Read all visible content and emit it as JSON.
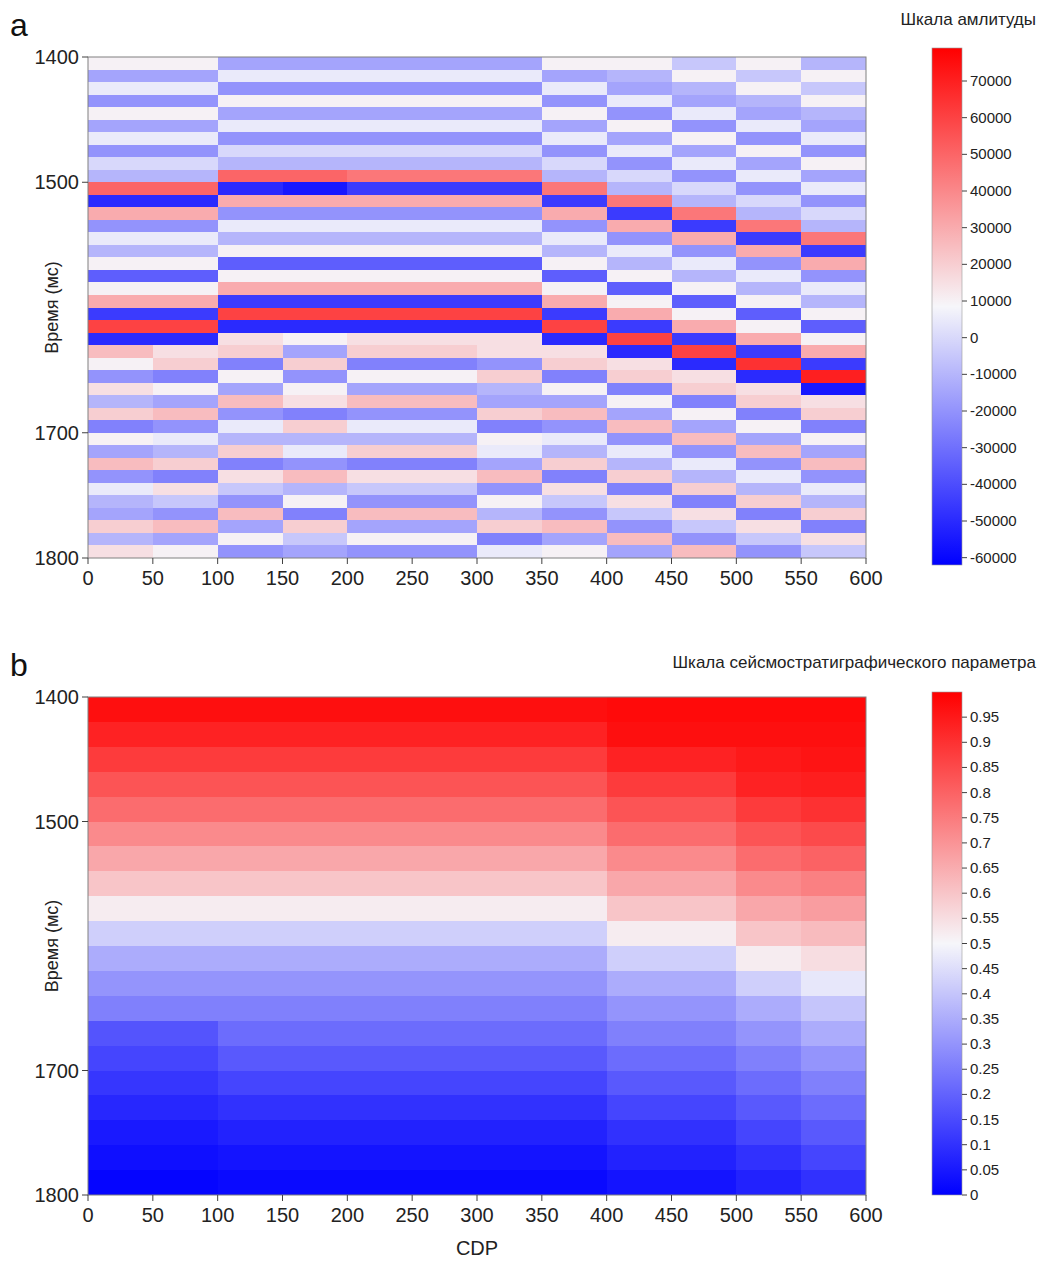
{
  "chart_data": [
    {
      "type": "heatmap",
      "panel": "a",
      "title": "Шкала амлитуды",
      "y_label": "Время (мс)",
      "xlim": [
        0,
        600
      ],
      "xticks": [
        0,
        50,
        100,
        150,
        200,
        250,
        300,
        350,
        400,
        450,
        500,
        550,
        600
      ],
      "ylim": [
        1400,
        1800
      ],
      "yticks": [
        1400,
        1500,
        1700,
        1800
      ],
      "x_edges": [
        0,
        50,
        100,
        150,
        200,
        250,
        300,
        350,
        400,
        450,
        500,
        550,
        600
      ],
      "y_edges": [
        1400,
        1410,
        1420,
        1430,
        1440,
        1450,
        1460,
        1470,
        1480,
        1490,
        1500,
        1510,
        1520,
        1530,
        1540,
        1550,
        1560,
        1570,
        1580,
        1590,
        1600,
        1610,
        1620,
        1630,
        1640,
        1650,
        1660,
        1670,
        1680,
        1690,
        1700,
        1710,
        1720,
        1730,
        1740,
        1750,
        1760,
        1770,
        1780,
        1790,
        1800
      ],
      "values": [
        [
          10000,
          -15000,
          5000,
          -20000,
          10000,
          -15000,
          5000,
          -20000,
          0,
          -10000,
          50000,
          -50000,
          30000,
          -20000,
          5000,
          -10000,
          10000,
          -35000,
          10000,
          30000,
          -45000,
          60000,
          -50000,
          25000,
          10000,
          -20000,
          15000,
          -10000,
          20000,
          -25000,
          10000,
          -15000,
          25000,
          -20000,
          5000,
          -10000,
          -15000,
          20000,
          -10000,
          15000
        ],
        [
          10000,
          -15000,
          5000,
          -20000,
          10000,
          -15000,
          5000,
          -20000,
          0,
          -10000,
          50000,
          -50000,
          30000,
          -20000,
          5000,
          -10000,
          10000,
          -35000,
          10000,
          30000,
          -45000,
          60000,
          -50000,
          15000,
          20000,
          -25000,
          10000,
          -15000,
          25000,
          -20000,
          5000,
          -10000,
          20000,
          -25000,
          15000,
          -5000,
          -20000,
          25000,
          -15000,
          10000
        ],
        [
          -15000,
          5000,
          -20000,
          10000,
          -15000,
          5000,
          -20000,
          0,
          -10000,
          50000,
          -50000,
          30000,
          -20000,
          5000,
          -10000,
          10000,
          -35000,
          10000,
          30000,
          -45000,
          60000,
          -50000,
          15000,
          20000,
          -25000,
          10000,
          -15000,
          25000,
          -20000,
          5000,
          -10000,
          20000,
          -25000,
          15000,
          -5000,
          -20000,
          25000,
          -15000,
          10000,
          -20000
        ],
        [
          -15000,
          5000,
          -20000,
          10000,
          -15000,
          5000,
          -20000,
          0,
          -10000,
          50000,
          -55000,
          30000,
          -20000,
          5000,
          -10000,
          10000,
          -35000,
          10000,
          30000,
          -45000,
          60000,
          -50000,
          10000,
          -15000,
          20000,
          -20000,
          10000,
          15000,
          -25000,
          20000,
          -10000,
          5000,
          -20000,
          25000,
          -10000,
          10000,
          -25000,
          20000,
          -5000,
          -15000
        ],
        [
          -15000,
          5000,
          -20000,
          10000,
          -15000,
          5000,
          -20000,
          0,
          -10000,
          45000,
          -45000,
          30000,
          -20000,
          5000,
          -10000,
          10000,
          -35000,
          10000,
          30000,
          -45000,
          60000,
          -50000,
          15000,
          20000,
          -25000,
          10000,
          -15000,
          25000,
          -20000,
          5000,
          -10000,
          20000,
          -25000,
          15000,
          -5000,
          -20000,
          25000,
          -15000,
          10000,
          -20000
        ],
        [
          -15000,
          5000,
          -20000,
          10000,
          -15000,
          5000,
          -20000,
          0,
          -10000,
          45000,
          -45000,
          30000,
          -20000,
          5000,
          -10000,
          10000,
          -35000,
          10000,
          30000,
          -45000,
          60000,
          -50000,
          15000,
          20000,
          -25000,
          10000,
          -15000,
          25000,
          -20000,
          5000,
          -10000,
          20000,
          -25000,
          15000,
          -5000,
          -20000,
          25000,
          -15000,
          10000,
          -20000
        ],
        [
          -15000,
          5000,
          -20000,
          10000,
          -15000,
          5000,
          -20000,
          0,
          -10000,
          45000,
          -45000,
          30000,
          -20000,
          5000,
          -10000,
          10000,
          -35000,
          10000,
          30000,
          -45000,
          60000,
          -50000,
          15000,
          15000,
          -20000,
          20000,
          -10000,
          -15000,
          20000,
          -25000,
          10000,
          5000,
          -15000,
          25000,
          -20000,
          10000,
          -10000,
          20000,
          -25000,
          5000
        ],
        [
          10000,
          -15000,
          5000,
          -20000,
          10000,
          -15000,
          5000,
          -20000,
          0,
          -10000,
          45000,
          -45000,
          30000,
          -20000,
          5000,
          -10000,
          10000,
          -35000,
          10000,
          30000,
          -45000,
          60000,
          -50000,
          15000,
          20000,
          -25000,
          10000,
          -15000,
          25000,
          -20000,
          5000,
          -10000,
          20000,
          -25000,
          15000,
          -5000,
          -20000,
          25000,
          -15000,
          10000
        ],
        [
          10000,
          -10000,
          -15000,
          5000,
          -20000,
          10000,
          -15000,
          5000,
          -20000,
          0,
          -10000,
          45000,
          -45000,
          30000,
          -20000,
          5000,
          -10000,
          10000,
          -35000,
          10000,
          30000,
          -45000,
          60000,
          -50000,
          15000,
          20000,
          -25000,
          10000,
          -15000,
          25000,
          -20000,
          5000,
          -10000,
          20000,
          -25000,
          15000,
          -5000,
          -20000,
          25000,
          -15000
        ],
        [
          -5000,
          10000,
          -10000,
          -15000,
          5000,
          -20000,
          10000,
          -15000,
          5000,
          -20000,
          0,
          -10000,
          45000,
          -45000,
          30000,
          -20000,
          5000,
          -10000,
          10000,
          -35000,
          10000,
          30000,
          -45000,
          60000,
          -50000,
          15000,
          20000,
          -25000,
          10000,
          -15000,
          25000,
          -20000,
          5000,
          -10000,
          20000,
          -25000,
          15000,
          -5000,
          -20000,
          25000
        ],
        [
          10000,
          -5000,
          10000,
          -10000,
          -15000,
          5000,
          -20000,
          10000,
          -15000,
          5000,
          -20000,
          0,
          -10000,
          45000,
          -45000,
          30000,
          -20000,
          5000,
          -10000,
          10000,
          -35000,
          10000,
          30000,
          -45000,
          65000,
          -50000,
          15000,
          20000,
          -25000,
          10000,
          -15000,
          25000,
          -20000,
          5000,
          -10000,
          20000,
          -25000,
          15000,
          -5000,
          -20000
        ],
        [
          -10000,
          10000,
          -5000,
          10000,
          -10000,
          -15000,
          5000,
          -20000,
          10000,
          -15000,
          5000,
          -20000,
          0,
          -10000,
          45000,
          -45000,
          30000,
          -20000,
          5000,
          -10000,
          10000,
          -35000,
          10000,
          30000,
          -45000,
          70000,
          -55000,
          15000,
          20000,
          -25000,
          10000,
          -15000,
          25000,
          -20000,
          5000,
          -10000,
          20000,
          -25000,
          15000,
          -5000
        ]
      ],
      "colorbar_range": [
        -62000,
        79000
      ],
      "colorbar_ticks": [
        -60000,
        -50000,
        -40000,
        -30000,
        -20000,
        -10000,
        0,
        10000,
        20000,
        30000,
        40000,
        50000,
        60000,
        70000
      ]
    },
    {
      "type": "heatmap",
      "panel": "b",
      "title": "Шкала сейсмостратиграфического параметра",
      "x_label": "CDP",
      "y_label": "Время (мс)",
      "xlim": [
        0,
        600
      ],
      "xticks": [
        0,
        50,
        100,
        150,
        200,
        250,
        300,
        350,
        400,
        450,
        500,
        550,
        600
      ],
      "ylim": [
        1400,
        1800
      ],
      "yticks": [
        1400,
        1500,
        1700,
        1800
      ],
      "x_edges": [
        0,
        50,
        100,
        150,
        200,
        250,
        300,
        350,
        400,
        450,
        500,
        550,
        600
      ],
      "y_edges": [
        1400,
        1420,
        1440,
        1460,
        1480,
        1500,
        1520,
        1540,
        1560,
        1580,
        1600,
        1620,
        1640,
        1660,
        1680,
        1700,
        1720,
        1740,
        1760,
        1780,
        1800
      ],
      "values": [
        [
          0.97,
          0.93,
          0.88,
          0.83,
          0.78,
          0.72,
          0.66,
          0.6,
          0.52,
          0.42,
          0.35,
          0.3,
          0.26,
          0.17,
          0.14,
          0.11,
          0.08,
          0.05,
          0.03,
          0.01
        ],
        [
          0.97,
          0.93,
          0.88,
          0.83,
          0.78,
          0.72,
          0.66,
          0.6,
          0.52,
          0.42,
          0.35,
          0.3,
          0.26,
          0.17,
          0.14,
          0.11,
          0.08,
          0.05,
          0.03,
          0.01
        ],
        [
          0.97,
          0.93,
          0.88,
          0.83,
          0.78,
          0.72,
          0.66,
          0.6,
          0.52,
          0.42,
          0.35,
          0.3,
          0.26,
          0.22,
          0.18,
          0.14,
          0.1,
          0.07,
          0.04,
          0.02
        ],
        [
          0.97,
          0.93,
          0.88,
          0.83,
          0.78,
          0.72,
          0.66,
          0.6,
          0.52,
          0.42,
          0.35,
          0.3,
          0.26,
          0.22,
          0.18,
          0.14,
          0.1,
          0.07,
          0.04,
          0.02
        ],
        [
          0.97,
          0.93,
          0.88,
          0.83,
          0.78,
          0.72,
          0.66,
          0.6,
          0.52,
          0.42,
          0.35,
          0.3,
          0.26,
          0.22,
          0.18,
          0.14,
          0.1,
          0.07,
          0.04,
          0.02
        ],
        [
          0.97,
          0.93,
          0.88,
          0.83,
          0.78,
          0.72,
          0.66,
          0.6,
          0.52,
          0.42,
          0.35,
          0.3,
          0.26,
          0.22,
          0.18,
          0.14,
          0.1,
          0.07,
          0.04,
          0.02
        ],
        [
          0.97,
          0.93,
          0.88,
          0.83,
          0.78,
          0.72,
          0.66,
          0.6,
          0.52,
          0.42,
          0.35,
          0.3,
          0.26,
          0.22,
          0.18,
          0.14,
          0.1,
          0.07,
          0.04,
          0.02
        ],
        [
          0.97,
          0.93,
          0.88,
          0.83,
          0.78,
          0.72,
          0.66,
          0.6,
          0.52,
          0.42,
          0.35,
          0.3,
          0.26,
          0.22,
          0.18,
          0.14,
          0.1,
          0.07,
          0.04,
          0.02
        ],
        [
          0.98,
          0.97,
          0.93,
          0.88,
          0.83,
          0.78,
          0.72,
          0.66,
          0.6,
          0.52,
          0.42,
          0.35,
          0.3,
          0.26,
          0.22,
          0.18,
          0.14,
          0.1,
          0.07,
          0.04
        ],
        [
          0.98,
          0.97,
          0.93,
          0.88,
          0.83,
          0.78,
          0.72,
          0.66,
          0.6,
          0.52,
          0.42,
          0.35,
          0.3,
          0.26,
          0.22,
          0.18,
          0.14,
          0.1,
          0.07,
          0.04
        ],
        [
          0.98,
          0.97,
          0.95,
          0.93,
          0.88,
          0.83,
          0.78,
          0.72,
          0.66,
          0.6,
          0.52,
          0.42,
          0.35,
          0.3,
          0.26,
          0.22,
          0.18,
          0.14,
          0.1,
          0.07
        ],
        [
          0.98,
          0.97,
          0.96,
          0.94,
          0.9,
          0.85,
          0.8,
          0.74,
          0.68,
          0.62,
          0.55,
          0.47,
          0.4,
          0.35,
          0.3,
          0.26,
          0.22,
          0.18,
          0.14,
          0.1
        ]
      ],
      "colorbar_range": [
        0,
        1
      ],
      "colorbar_ticks": [
        0,
        0.05,
        0.1,
        0.15,
        0.2,
        0.25,
        0.3,
        0.35,
        0.4,
        0.45,
        0.5,
        0.55,
        0.6,
        0.65,
        0.7,
        0.75,
        0.8,
        0.85,
        0.9,
        0.95
      ]
    }
  ]
}
